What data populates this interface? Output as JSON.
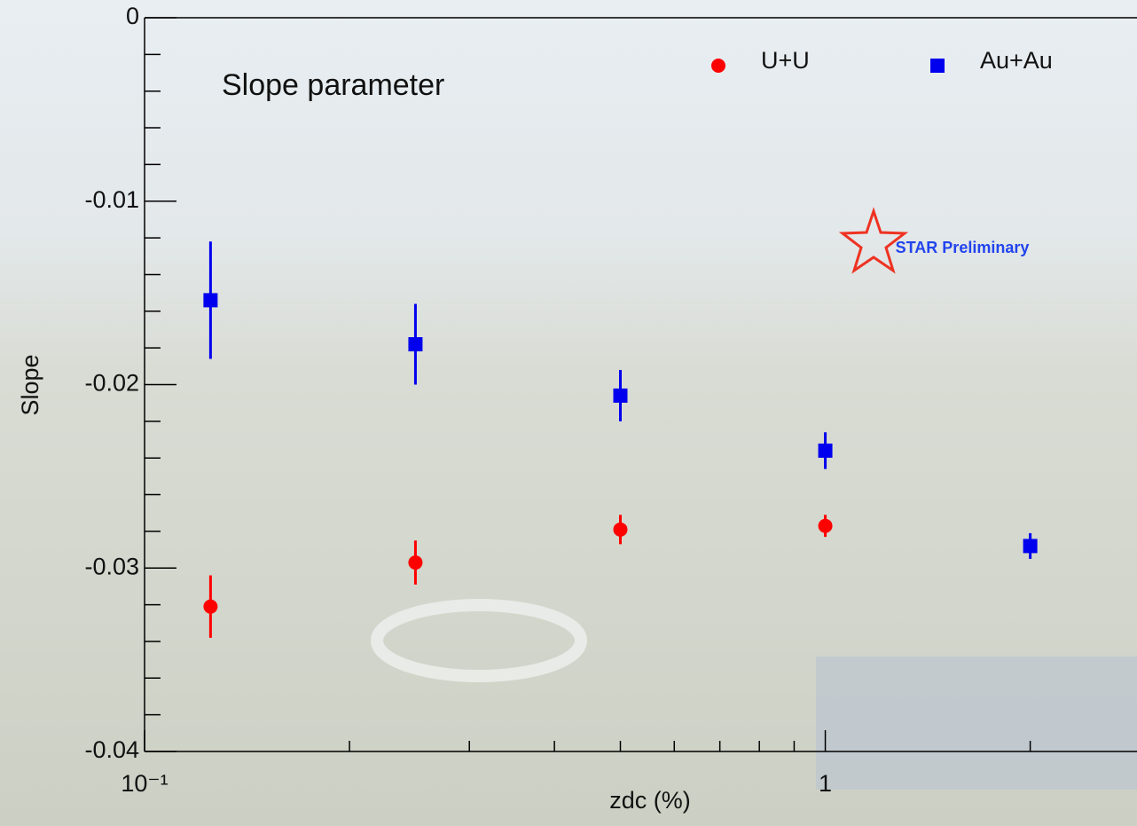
{
  "chart_data": {
    "type": "scatter",
    "title": "Slope parameter",
    "xlabel": "zdc (%)",
    "ylabel": "Slope",
    "annotation": "STAR Preliminary",
    "xscale": "log",
    "xlim": [
      0.1,
      2.87
    ],
    "ylim": [
      -0.04,
      0
    ],
    "xticks": [
      {
        "value": 0.1,
        "label": "10⁻¹"
      },
      1
    ],
    "xminorticks": [
      0.2,
      0.3,
      0.4,
      0.5,
      0.6,
      0.7,
      0.8,
      0.9,
      2
    ],
    "yticks": [
      0,
      -0.01,
      -0.02,
      -0.03,
      -0.04
    ],
    "yminorticks": [
      -0.002,
      -0.004,
      -0.006,
      -0.008,
      -0.012,
      -0.014,
      -0.016,
      -0.018,
      -0.022,
      -0.024,
      -0.026,
      -0.028,
      -0.032,
      -0.034,
      -0.036,
      -0.038
    ],
    "series": [
      {
        "name": "U+U",
        "color": "#ff0000",
        "marker": "circle",
        "x": [
          0.125,
          0.25,
          0.5,
          1
        ],
        "values": [
          -0.0321,
          -0.0297,
          -0.0279,
          -0.0277
        ],
        "errors": [
          0.0017,
          0.0012,
          0.0008,
          0.0006
        ]
      },
      {
        "name": "Au+Au",
        "color": "#0000ee",
        "marker": "square",
        "x": [
          0.125,
          0.25,
          0.5,
          1,
          2
        ],
        "values": [
          -0.0154,
          -0.0178,
          -0.0206,
          -0.0236,
          -0.0288
        ],
        "errors": [
          0.0032,
          0.0022,
          0.0014,
          0.001,
          0.0007
        ]
      }
    ]
  }
}
